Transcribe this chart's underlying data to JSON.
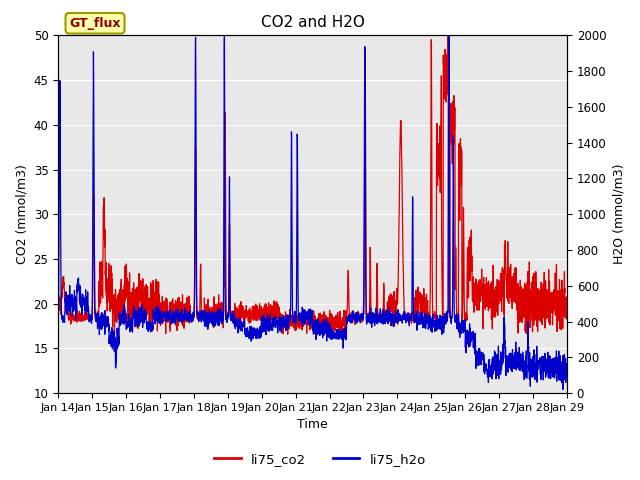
{
  "title": "CO2 and H2O",
  "xlabel": "Time",
  "ylabel_left": "CO2 (mmol/m3)",
  "ylabel_right": "H2O (mmol/m3)",
  "ylim_left": [
    10,
    50
  ],
  "ylim_right": [
    0,
    2000
  ],
  "yticks_left": [
    10,
    15,
    20,
    25,
    30,
    35,
    40,
    45,
    50
  ],
  "yticks_right": [
    0,
    200,
    400,
    600,
    800,
    1000,
    1200,
    1400,
    1600,
    1800,
    2000
  ],
  "xtick_labels": [
    "Jan 14",
    "Jan 15",
    "Jan 16",
    "Jan 17",
    "Jan 18",
    "Jan 19",
    "Jan 20",
    "Jan 21",
    "Jan 22",
    "Jan 23",
    "Jan 24",
    "Jan 25",
    "Jan 26",
    "Jan 27",
    "Jan 28",
    "Jan 29"
  ],
  "color_co2": "#dd0000",
  "color_h2o": "#0000cc",
  "legend_labels": [
    "li75_co2",
    "li75_h2o"
  ],
  "annotation_text": "GT_flux",
  "annotation_bg": "#ffffaa",
  "annotation_border": "#999900",
  "background_color": "#e8e8e8",
  "grid_color": "#ffffff",
  "title_fontsize": 11,
  "label_fontsize": 9,
  "tick_fontsize": 8.5
}
